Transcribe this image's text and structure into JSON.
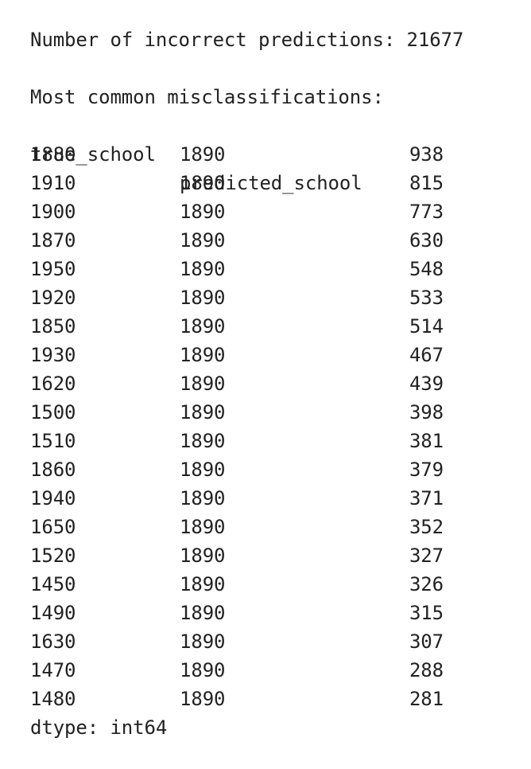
{
  "summary": {
    "incorrect_label": "Number of incorrect predictions: 21677",
    "misclass_heading": "Most common misclassifications:",
    "dtype_line": "dtype: int64"
  },
  "table": {
    "columns": [
      "true_school",
      "predicted_school"
    ],
    "rows": [
      {
        "true_school": "1880",
        "predicted_school": "1890",
        "count": "938"
      },
      {
        "true_school": "1910",
        "predicted_school": "1890",
        "count": "815"
      },
      {
        "true_school": "1900",
        "predicted_school": "1890",
        "count": "773"
      },
      {
        "true_school": "1870",
        "predicted_school": "1890",
        "count": "630"
      },
      {
        "true_school": "1950",
        "predicted_school": "1890",
        "count": "548"
      },
      {
        "true_school": "1920",
        "predicted_school": "1890",
        "count": "533"
      },
      {
        "true_school": "1850",
        "predicted_school": "1890",
        "count": "514"
      },
      {
        "true_school": "1930",
        "predicted_school": "1890",
        "count": "467"
      },
      {
        "true_school": "1620",
        "predicted_school": "1890",
        "count": "439"
      },
      {
        "true_school": "1500",
        "predicted_school": "1890",
        "count": "398"
      },
      {
        "true_school": "1510",
        "predicted_school": "1890",
        "count": "381"
      },
      {
        "true_school": "1860",
        "predicted_school": "1890",
        "count": "379"
      },
      {
        "true_school": "1940",
        "predicted_school": "1890",
        "count": "371"
      },
      {
        "true_school": "1650",
        "predicted_school": "1890",
        "count": "352"
      },
      {
        "true_school": "1520",
        "predicted_school": "1890",
        "count": "327"
      },
      {
        "true_school": "1450",
        "predicted_school": "1890",
        "count": "326"
      },
      {
        "true_school": "1490",
        "predicted_school": "1890",
        "count": "315"
      },
      {
        "true_school": "1630",
        "predicted_school": "1890",
        "count": "307"
      },
      {
        "true_school": "1470",
        "predicted_school": "1890",
        "count": "288"
      },
      {
        "true_school": "1480",
        "predicted_school": "1890",
        "count": "281"
      }
    ]
  }
}
